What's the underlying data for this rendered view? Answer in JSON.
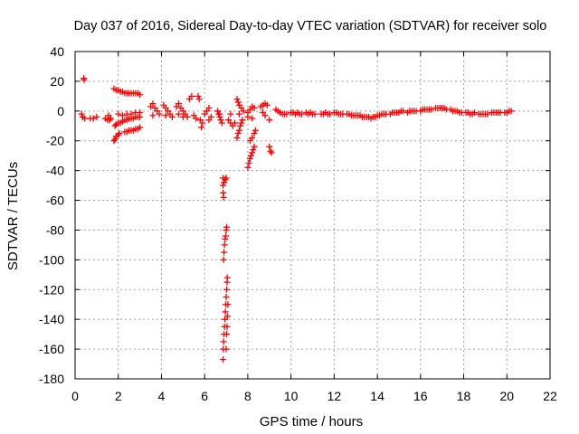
{
  "chart_data": {
    "type": "scatter",
    "title": "Day 037 of 2016, Sidereal Day-to-day VTEC variation (SDTVAR) for receiver solo",
    "xlabel": "GPS time / hours",
    "ylabel": "SDTVAR / TECUs",
    "xlim": [
      0,
      22
    ],
    "ylim": [
      -180,
      40
    ],
    "xticks": [
      0,
      2,
      4,
      6,
      8,
      10,
      12,
      14,
      16,
      18,
      20,
      22
    ],
    "yticks": [
      40,
      20,
      0,
      -20,
      -40,
      -60,
      -80,
      -100,
      -120,
      -140,
      -160,
      -180
    ],
    "grid": true,
    "marker": "+",
    "color": "#ff0000",
    "series": [
      {
        "name": "SDTVAR",
        "points": [
          [
            0.3,
            -2
          ],
          [
            0.35,
            -4
          ],
          [
            0.45,
            -5
          ],
          [
            0.4,
            22
          ],
          [
            0.42,
            21
          ],
          [
            0.7,
            -5
          ],
          [
            0.85,
            -5
          ],
          [
            1.0,
            -4
          ],
          [
            1.4,
            -5
          ],
          [
            1.5,
            -6
          ],
          [
            1.6,
            -6
          ],
          [
            1.65,
            -5
          ],
          [
            1.55,
            -3
          ],
          [
            1.8,
            15
          ],
          [
            1.9,
            14
          ],
          [
            2.0,
            14
          ],
          [
            2.1,
            13
          ],
          [
            2.2,
            13
          ],
          [
            2.3,
            12
          ],
          [
            2.4,
            12
          ],
          [
            2.5,
            12
          ],
          [
            2.6,
            12
          ],
          [
            2.7,
            12
          ],
          [
            2.8,
            12
          ],
          [
            2.9,
            12
          ],
          [
            3.0,
            11
          ],
          [
            1.8,
            -20
          ],
          [
            1.85,
            -19
          ],
          [
            1.9,
            -17
          ],
          [
            2.0,
            -16
          ],
          [
            2.05,
            -15
          ],
          [
            1.85,
            -10
          ],
          [
            1.9,
            -9
          ],
          [
            2.0,
            -8
          ],
          [
            2.1,
            -8
          ],
          [
            2.2,
            -7
          ],
          [
            2.3,
            -6
          ],
          [
            2.4,
            -6
          ],
          [
            2.5,
            -5
          ],
          [
            2.6,
            -5
          ],
          [
            2.7,
            -5
          ],
          [
            2.8,
            -4
          ],
          [
            2.9,
            -4
          ],
          [
            3.0,
            -4
          ],
          [
            2.0,
            -2
          ],
          [
            2.2,
            -3
          ],
          [
            2.4,
            -2
          ],
          [
            2.6,
            -2
          ],
          [
            2.8,
            -1
          ],
          [
            3.0,
            -1
          ],
          [
            2.3,
            -14
          ],
          [
            2.4,
            -14
          ],
          [
            2.5,
            -13
          ],
          [
            2.6,
            -13
          ],
          [
            2.7,
            -13
          ],
          [
            2.8,
            -12
          ],
          [
            2.9,
            -12
          ],
          [
            3.0,
            -11
          ],
          [
            3.5,
            3
          ],
          [
            3.6,
            5
          ],
          [
            3.7,
            2
          ],
          [
            3.8,
            0
          ],
          [
            3.9,
            -2
          ],
          [
            3.6,
            -3
          ],
          [
            4.1,
            4
          ],
          [
            4.2,
            2
          ],
          [
            4.3,
            0
          ],
          [
            4.4,
            -2
          ],
          [
            4.5,
            -4
          ],
          [
            4.2,
            -3
          ],
          [
            4.7,
            3
          ],
          [
            4.8,
            5
          ],
          [
            4.9,
            2
          ],
          [
            5.0,
            0
          ],
          [
            5.1,
            -2
          ],
          [
            5.2,
            -4
          ],
          [
            4.8,
            -2
          ],
          [
            5.0,
            -4
          ],
          [
            5.3,
            8
          ],
          [
            5.4,
            10
          ],
          [
            5.5,
            -3
          ],
          [
            5.6,
            -5
          ],
          [
            5.7,
            10
          ],
          [
            5.75,
            8
          ],
          [
            5.8,
            -6
          ],
          [
            5.9,
            -8
          ],
          [
            5.85,
            -11
          ],
          [
            6.0,
            -2
          ],
          [
            6.1,
            0
          ],
          [
            6.2,
            2
          ],
          [
            6.3,
            -4
          ],
          [
            6.2,
            -6
          ],
          [
            6.6,
            0
          ],
          [
            6.65,
            -2
          ],
          [
            6.7,
            -4
          ],
          [
            6.75,
            -6
          ],
          [
            6.8,
            -8
          ],
          [
            6.7,
            -2
          ],
          [
            6.85,
            -45
          ],
          [
            6.85,
            -50
          ],
          [
            6.86,
            -55
          ],
          [
            6.88,
            -58
          ],
          [
            6.9,
            -48
          ],
          [
            6.95,
            -46
          ],
          [
            7.0,
            -45
          ],
          [
            6.88,
            -100
          ],
          [
            6.9,
            -95
          ],
          [
            6.92,
            -90
          ],
          [
            6.95,
            -86
          ],
          [
            6.98,
            -84
          ],
          [
            7.0,
            -80
          ],
          [
            7.02,
            -78
          ],
          [
            6.85,
            -167
          ],
          [
            6.86,
            -160
          ],
          [
            6.88,
            -155
          ],
          [
            6.9,
            -150
          ],
          [
            6.92,
            -145
          ],
          [
            6.94,
            -140
          ],
          [
            6.96,
            -135
          ],
          [
            6.98,
            -130
          ],
          [
            7.0,
            -125
          ],
          [
            7.02,
            -120
          ],
          [
            7.04,
            -115
          ],
          [
            7.05,
            -112
          ],
          [
            7.0,
            -160
          ],
          [
            7.02,
            -150
          ],
          [
            7.04,
            -145
          ],
          [
            7.06,
            -138
          ],
          [
            7.08,
            -130
          ],
          [
            7.1,
            -6
          ],
          [
            7.2,
            -8
          ],
          [
            7.3,
            -10
          ],
          [
            7.4,
            -8
          ],
          [
            7.2,
            -2
          ],
          [
            7.5,
            8
          ],
          [
            7.55,
            6
          ],
          [
            7.6,
            4
          ],
          [
            7.7,
            2
          ],
          [
            7.8,
            0
          ],
          [
            7.6,
            -2
          ],
          [
            7.5,
            -18
          ],
          [
            7.55,
            -15
          ],
          [
            7.6,
            -13
          ],
          [
            7.65,
            -10
          ],
          [
            7.7,
            -8
          ],
          [
            7.75,
            -6
          ],
          [
            8.0,
            -1
          ],
          [
            8.1,
            1
          ],
          [
            8.2,
            3
          ],
          [
            8.3,
            2
          ],
          [
            8.0,
            -4
          ],
          [
            8.2,
            -5
          ],
          [
            8.0,
            -38
          ],
          [
            8.05,
            -35
          ],
          [
            8.1,
            -32
          ],
          [
            8.15,
            -30
          ],
          [
            8.2,
            -28
          ],
          [
            8.25,
            -26
          ],
          [
            8.3,
            -24
          ],
          [
            8.1,
            -20
          ],
          [
            8.2,
            -18
          ],
          [
            8.3,
            -15
          ],
          [
            8.35,
            -13
          ],
          [
            8.6,
            3
          ],
          [
            8.7,
            4
          ],
          [
            8.8,
            5
          ],
          [
            8.9,
            4
          ],
          [
            8.7,
            -1
          ],
          [
            8.8,
            -3
          ],
          [
            9.0,
            -6
          ],
          [
            9.0,
            -24
          ],
          [
            9.05,
            -27
          ],
          [
            9.1,
            -28
          ],
          [
            9.3,
            1
          ],
          [
            9.4,
            0
          ],
          [
            9.5,
            -1
          ],
          [
            9.6,
            -2
          ],
          [
            9.7,
            -2
          ],
          [
            9.8,
            -2
          ],
          [
            10.0,
            -1
          ],
          [
            10.1,
            -1
          ],
          [
            10.2,
            -2
          ],
          [
            10.3,
            -1
          ],
          [
            10.4,
            -2
          ],
          [
            10.5,
            -2
          ],
          [
            10.7,
            -1
          ],
          [
            10.8,
            -2
          ],
          [
            10.9,
            -1
          ],
          [
            11.0,
            -2
          ],
          [
            11.1,
            -2
          ],
          [
            11.4,
            -2
          ],
          [
            11.5,
            -2
          ],
          [
            11.6,
            -1
          ],
          [
            11.7,
            -2
          ],
          [
            11.8,
            -2
          ],
          [
            12.0,
            -1
          ],
          [
            12.1,
            -1
          ],
          [
            12.2,
            -2
          ],
          [
            12.3,
            -2
          ],
          [
            12.4,
            -2
          ],
          [
            12.6,
            -2
          ],
          [
            12.7,
            -2
          ],
          [
            12.8,
            -3
          ],
          [
            12.9,
            -3
          ],
          [
            13.0,
            -3
          ],
          [
            13.1,
            -3
          ],
          [
            13.2,
            -3
          ],
          [
            13.3,
            -4
          ],
          [
            13.4,
            -4
          ],
          [
            13.5,
            -4
          ],
          [
            13.6,
            -4
          ],
          [
            13.7,
            -5
          ],
          [
            13.8,
            -4
          ],
          [
            13.9,
            -4
          ],
          [
            14.0,
            -3
          ],
          [
            14.1,
            -3
          ],
          [
            14.2,
            -2
          ],
          [
            14.3,
            -2
          ],
          [
            14.4,
            -2
          ],
          [
            14.6,
            -2
          ],
          [
            14.7,
            -1
          ],
          [
            14.8,
            -1
          ],
          [
            14.9,
            -1
          ],
          [
            15.0,
            -1
          ],
          [
            15.1,
            0
          ],
          [
            15.2,
            0
          ],
          [
            15.4,
            -1
          ],
          [
            15.5,
            0
          ],
          [
            15.6,
            0
          ],
          [
            15.7,
            0
          ],
          [
            15.8,
            0
          ],
          [
            16.0,
            0
          ],
          [
            16.1,
            1
          ],
          [
            16.2,
            1
          ],
          [
            16.3,
            1
          ],
          [
            16.4,
            1
          ],
          [
            16.5,
            1
          ],
          [
            16.7,
            2
          ],
          [
            16.8,
            2
          ],
          [
            16.9,
            2
          ],
          [
            17.0,
            2
          ],
          [
            17.1,
            2
          ],
          [
            17.2,
            1
          ],
          [
            17.4,
            1
          ],
          [
            17.5,
            0
          ],
          [
            17.6,
            0
          ],
          [
            17.7,
            0
          ],
          [
            17.8,
            -1
          ],
          [
            17.9,
            -1
          ],
          [
            18.1,
            -1
          ],
          [
            18.2,
            -1
          ],
          [
            18.3,
            -2
          ],
          [
            18.4,
            -2
          ],
          [
            18.5,
            -1
          ],
          [
            18.7,
            -2
          ],
          [
            18.8,
            -2
          ],
          [
            18.9,
            -2
          ],
          [
            19.0,
            -2
          ],
          [
            19.1,
            -2
          ],
          [
            19.3,
            -1
          ],
          [
            19.4,
            -1
          ],
          [
            19.5,
            -1
          ],
          [
            19.6,
            -1
          ],
          [
            19.7,
            -1
          ],
          [
            19.9,
            -1
          ],
          [
            20.0,
            -1
          ],
          [
            20.1,
            0
          ],
          [
            20.2,
            0
          ]
        ]
      }
    ]
  }
}
